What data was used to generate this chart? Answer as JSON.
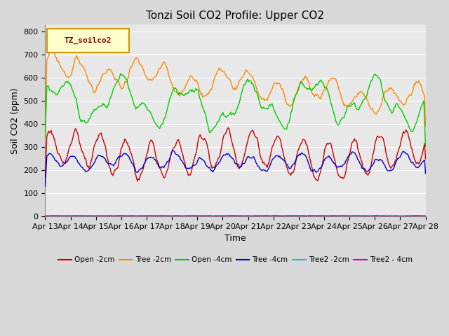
{
  "title": "Tonzi Soil CO2 Profile: Upper CO2",
  "xlabel": "Time",
  "ylabel": "Soil CO2 (ppm)",
  "ylim": [
    0,
    830
  ],
  "yticks": [
    0,
    100,
    200,
    300,
    400,
    500,
    600,
    700,
    800
  ],
  "x_tick_labels": [
    "Apr 13",
    "Apr 14",
    "Apr 15",
    "Apr 16",
    "Apr 17",
    "Apr 18",
    "Apr 19",
    "Apr 20",
    "Apr 21",
    "Apr 22",
    "Apr 23",
    "Apr 24",
    "Apr 25",
    "Apr 26",
    "Apr 27",
    "Apr 28"
  ],
  "legend_label": "TZ_soilco2",
  "legend_box_color": "#ffffcc",
  "legend_box_edge": "#cc9900",
  "series": [
    {
      "label": "Open -2cm",
      "color": "#cc0000"
    },
    {
      "label": "Tree -2cm",
      "color": "#ff8800"
    },
    {
      "label": "Open -4cm",
      "color": "#00cc00"
    },
    {
      "label": "Tree -4cm",
      "color": "#0000cc"
    },
    {
      "label": "Tree2 -2cm",
      "color": "#00cccc"
    },
    {
      "label": "Tree2 - 4cm",
      "color": "#cc00cc"
    }
  ],
  "background_color": "#e8e8e8",
  "grid_color": "#ffffff",
  "title_fontsize": 11,
  "axis_fontsize": 9,
  "tick_fontsize": 8
}
